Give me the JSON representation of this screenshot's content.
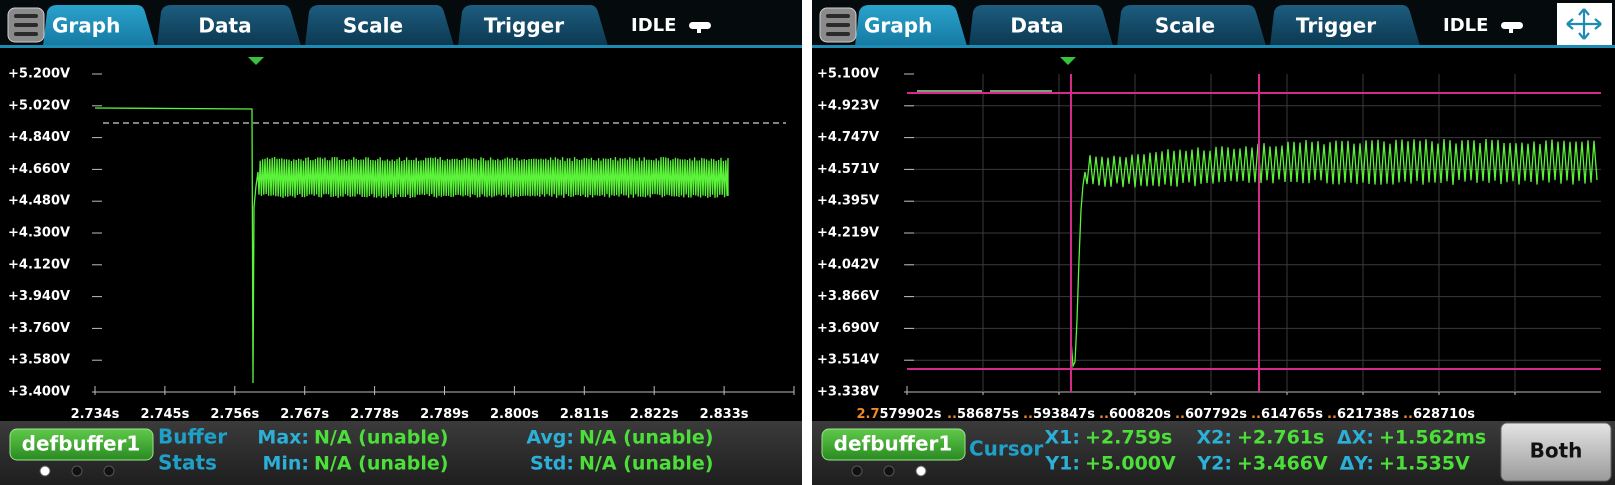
{
  "panels": [
    {
      "tabs": [
        "Graph",
        "Data",
        "Scale",
        "Trigger"
      ],
      "status": "IDLE",
      "y_axis_labels": [
        "+5.200V",
        "+5.020V",
        "+4.840V",
        "+4.660V",
        "+4.480V",
        "+4.300V",
        "+4.120V",
        "+3.940V",
        "+3.760V",
        "+3.580V",
        "+3.400V"
      ],
      "x_axis_labels": [
        {
          "prefix": "",
          "rest": "2.734s"
        },
        {
          "prefix": "",
          "rest": "2.745s"
        },
        {
          "prefix": "",
          "rest": "2.756s"
        },
        {
          "prefix": "",
          "rest": "2.767s"
        },
        {
          "prefix": "",
          "rest": "2.778s"
        },
        {
          "prefix": "",
          "rest": "2.789s"
        },
        {
          "prefix": "",
          "rest": "2.800s"
        },
        {
          "prefix": "",
          "rest": "2.811s"
        },
        {
          "prefix": "",
          "rest": "2.822s"
        },
        {
          "prefix": "",
          "rest": "2.833s"
        }
      ],
      "buffer": "defbuffer1",
      "footer_title": [
        "Buffer",
        "Stats"
      ],
      "footer_columns": [
        [
          {
            "label": "Max:",
            "value": "N/A (unable)"
          },
          {
            "label": "Min:",
            "value": "N/A (unable)"
          }
        ],
        [
          {
            "label": "Avg:",
            "value": "N/A (unable)"
          },
          {
            "label": "Std:",
            "value": "N/A (unable)"
          }
        ]
      ]
    },
    {
      "tabs": [
        "Graph",
        "Data",
        "Scale",
        "Trigger"
      ],
      "status": "IDLE",
      "y_axis_labels": [
        "+5.100V",
        "+4.923V",
        "+4.747V",
        "+4.571V",
        "+4.395V",
        "+4.219V",
        "+4.042V",
        "+3.866V",
        "+3.690V",
        "+3.514V",
        "+3.338V"
      ],
      "x_axis_labels": [
        {
          "prefix": "2.7",
          "rest": "579902s"
        },
        {
          "prefix": "..",
          "rest": "586875s"
        },
        {
          "prefix": "..",
          "rest": "593847s"
        },
        {
          "prefix": "..",
          "rest": "600820s"
        },
        {
          "prefix": "..",
          "rest": "607792s"
        },
        {
          "prefix": "..",
          "rest": "614765s"
        },
        {
          "prefix": "..",
          "rest": "621738s"
        },
        {
          "prefix": "..",
          "rest": "628710s"
        }
      ],
      "buffer": "defbuffer1",
      "footer_title": [
        "Cursor"
      ],
      "footer_columns": [
        [
          {
            "label": "X1:",
            "value": "+2.759s"
          },
          {
            "label": "Y1:",
            "value": "+5.000V"
          }
        ],
        [
          {
            "label": "X2:",
            "value": "+2.761s"
          },
          {
            "label": "Y2:",
            "value": "+3.466V"
          }
        ],
        [
          {
            "label": "ΔX:",
            "value": "+1.562ms"
          },
          {
            "label": "ΔY:",
            "value": "+1.535V"
          }
        ]
      ],
      "button": "Both"
    }
  ]
}
